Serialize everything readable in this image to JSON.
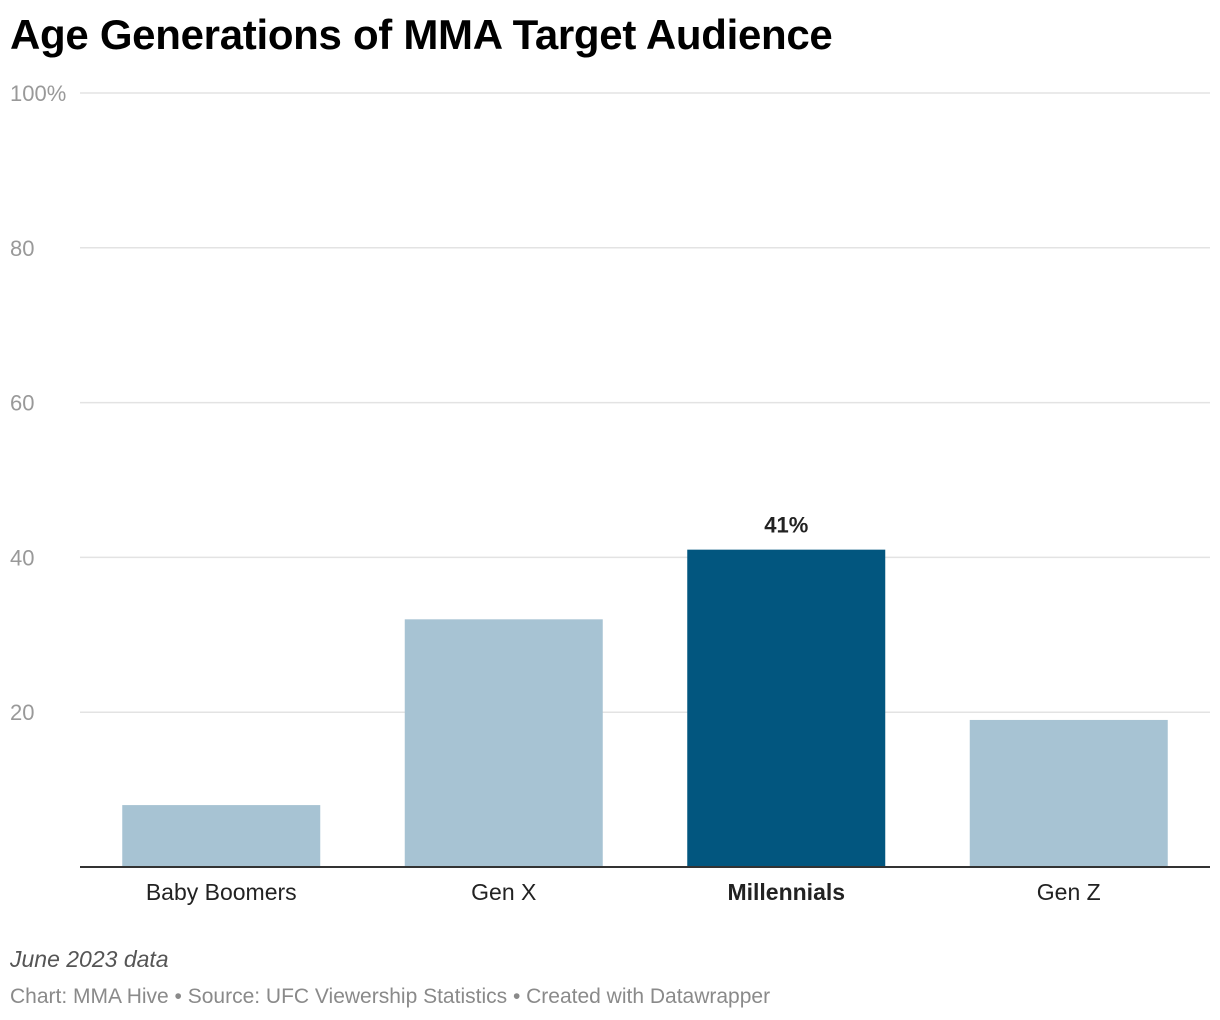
{
  "chart_data": {
    "type": "bar",
    "title": "Age Generations of MMA Target Audience",
    "categories": [
      "Baby Boomers",
      "Gen X",
      "Millennials",
      "Gen Z"
    ],
    "values": [
      8,
      32,
      41,
      19
    ],
    "highlighted_category": "Millennials",
    "data_labels": [
      "",
      "",
      "41%",
      ""
    ],
    "ylim": [
      0,
      100
    ],
    "y_ticks": [
      20,
      40,
      60,
      80,
      100
    ],
    "y_tick_labels": [
      "20",
      "40",
      "60",
      "80",
      "100%"
    ],
    "xlabel": "",
    "ylabel": "",
    "grid": true,
    "legend": "none",
    "colors": {
      "bar": "#a7c3d3",
      "highlight": "#02567f",
      "grid": "#e3e3e3",
      "baseline": "#333333",
      "tick_label": "#999999",
      "category_label": "#222222",
      "data_label": "#222222"
    }
  },
  "footer": {
    "note": "June 2023 data",
    "credits": "Chart: MMA Hive • Source: UFC Viewership Statistics • Created with Datawrapper"
  }
}
